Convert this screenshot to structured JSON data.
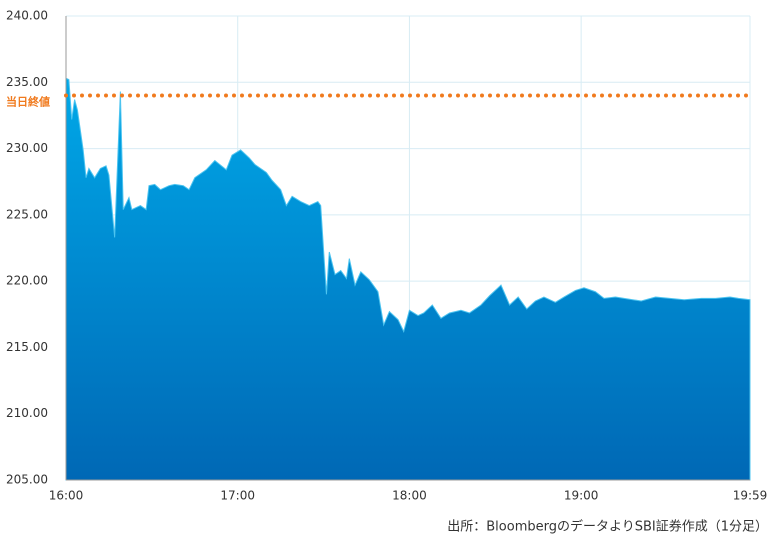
{
  "chart_data": {
    "type": "area",
    "source": "出所：BloombergのデータよりSBI証券作成（1分足）",
    "x": [
      0,
      1,
      2,
      3,
      4,
      6,
      7,
      8,
      10,
      12,
      14,
      15,
      17,
      19,
      20,
      22,
      23,
      26,
      28,
      29,
      31,
      33,
      36,
      38,
      41,
      43,
      45,
      49,
      52,
      56,
      58,
      61,
      64,
      66,
      70,
      72,
      75,
      77,
      79,
      82,
      85,
      88,
      89,
      91,
      92,
      94,
      96,
      98,
      99,
      101,
      103,
      106,
      109,
      111,
      113,
      116,
      118,
      120,
      123,
      125,
      128,
      131,
      134,
      138,
      141,
      145,
      148,
      152,
      155,
      158,
      161,
      164,
      167,
      171,
      174,
      178,
      181,
      185,
      188,
      192,
      195,
      201,
      206,
      211,
      216,
      222,
      227,
      232,
      235,
      239
    ],
    "series": [
      {
        "color": "#0a8ad6",
        "values": [
          235.3,
          235.2,
          232.2,
          233.7,
          232.9,
          229.9,
          227.8,
          228.5,
          227.8,
          228.5,
          228.7,
          228.0,
          223.3,
          234.3,
          225.4,
          226.3,
          225.4,
          225.7,
          225.4,
          227.2,
          227.3,
          226.9,
          227.2,
          227.3,
          227.2,
          226.9,
          227.8,
          228.4,
          229.1,
          228.4,
          229.5,
          229.9,
          229.3,
          228.8,
          228.2,
          227.6,
          226.9,
          225.7,
          226.4,
          226.0,
          225.7,
          226.0,
          225.7,
          219.0,
          222.2,
          220.5,
          220.8,
          220.2,
          221.7,
          219.7,
          220.7,
          220.1,
          219.2,
          216.7,
          217.7,
          217.1,
          216.2,
          217.8,
          217.4,
          217.6,
          218.2,
          217.2,
          217.6,
          217.8,
          217.6,
          218.2,
          218.9,
          219.7,
          218.2,
          218.8,
          217.9,
          218.5,
          218.8,
          218.4,
          218.8,
          219.3,
          219.5,
          219.2,
          218.7,
          218.8,
          218.7,
          218.5,
          218.8,
          218.7,
          218.6,
          218.7,
          218.7,
          218.8,
          218.7,
          218.6
        ]
      }
    ],
    "reference_line": {
      "value": 234,
      "label": "当日終値",
      "color": "#f07a1e"
    },
    "xlim": [
      0,
      239
    ],
    "xticks": [
      {
        "value": 0,
        "label": "16:00"
      },
      {
        "value": 60,
        "label": "17:00"
      },
      {
        "value": 120,
        "label": "18:00"
      },
      {
        "value": 180,
        "label": "19:00"
      },
      {
        "value": 239,
        "label": "19:59"
      }
    ],
    "ylim": [
      205,
      240
    ],
    "yticks": [
      {
        "value": 205,
        "label": "205.00"
      },
      {
        "value": 210,
        "label": "210.00"
      },
      {
        "value": 215,
        "label": "215.00"
      },
      {
        "value": 220,
        "label": "220.00"
      },
      {
        "value": 225,
        "label": "225.00"
      },
      {
        "value": 230,
        "label": "230.00"
      },
      {
        "value": 235,
        "label": "235.00"
      },
      {
        "value": 240,
        "label": "240.00"
      }
    ],
    "grid": true
  }
}
